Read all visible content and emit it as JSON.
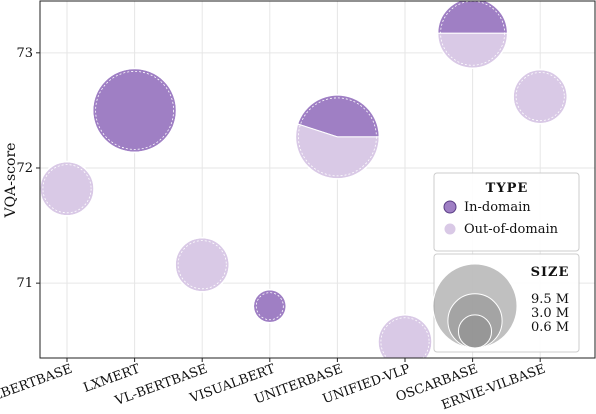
{
  "chart_data": {
    "type": "scatter",
    "ylabel": "VQA-score",
    "xlabel": "",
    "ylim": [
      70.35,
      73.45
    ],
    "yticks": [
      71,
      72,
      73
    ],
    "grid": true,
    "categories": [
      {
        "label": "ViLBERT_BASE",
        "display": "VILBERTBASE"
      },
      {
        "label": "LXMERT",
        "display": "LXMERT"
      },
      {
        "label": "VL-BERT_BASE",
        "display": "VL-BERTBASE"
      },
      {
        "label": "VisualBERT",
        "display": "VISUALBERT"
      },
      {
        "label": "UNITER_BASE",
        "display": "UNITERBASE"
      },
      {
        "label": "Unified-VLP",
        "display": "UNIFIED-VLP"
      },
      {
        "label": "OSCAR_BASE",
        "display": "OSCARBASE"
      },
      {
        "label": "ERNIE-ViL_BASE",
        "display": "ERNIE-VILBASE"
      }
    ],
    "points": [
      {
        "model": "ViLBERT_BASE",
        "y": 71.82,
        "size_m": 3.0,
        "in_domain_fraction": 0.0
      },
      {
        "model": "LXMERT",
        "y": 72.5,
        "size_m": 9.5,
        "in_domain_fraction": 1.0
      },
      {
        "model": "VL-BERT_BASE",
        "y": 71.16,
        "size_m": 3.0,
        "in_domain_fraction": 0.0
      },
      {
        "model": "VisualBERT",
        "y": 70.8,
        "size_m": 0.6,
        "in_domain_fraction": 1.0
      },
      {
        "model": "UNITER_BASE",
        "y": 72.27,
        "size_m": 9.5,
        "in_domain_fraction": 0.45
      },
      {
        "model": "Unified-VLP",
        "y": 70.49,
        "size_m": 3.0,
        "in_domain_fraction": 0.0
      },
      {
        "model": "OSCAR_BASE",
        "y": 73.17,
        "size_m": 6.0,
        "in_domain_fraction": 0.5
      },
      {
        "model": "ERNIE-ViL_BASE",
        "y": 72.62,
        "size_m": 3.0,
        "in_domain_fraction": 0.0
      }
    ],
    "legend_type": {
      "title": "Type",
      "entries": [
        {
          "label": "In-domain",
          "color": "#9f7fc4"
        },
        {
          "label": "Out-of-domain",
          "color": "#d9c9e6"
        }
      ],
      "placement": "right"
    },
    "legend_size": {
      "title": "Size",
      "entries": [
        "9.5 M",
        "3.0 M",
        "0.6 M"
      ],
      "placement": "bottom-right"
    },
    "colors": {
      "in_domain": "#9f7fc4",
      "out_of_domain": "#d9c9e6",
      "size_legend": "#8c8c8c"
    }
  }
}
